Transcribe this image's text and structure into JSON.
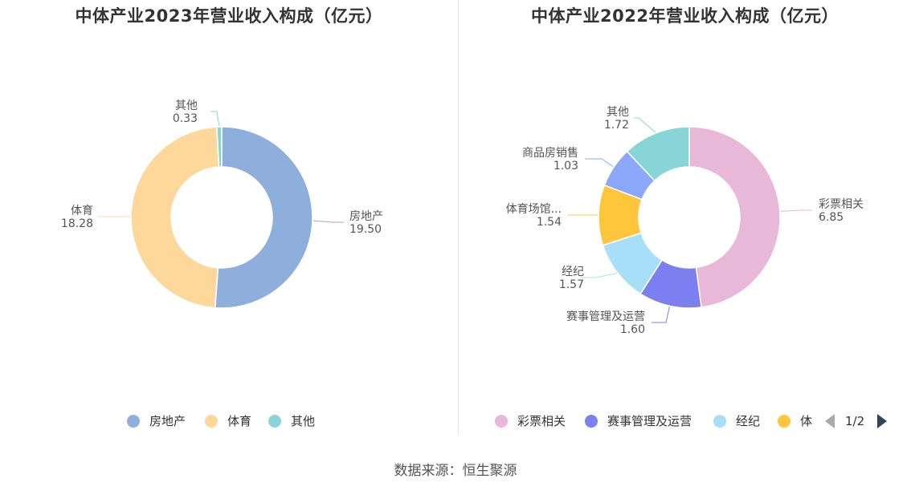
{
  "chart_data": [
    {
      "type": "pie",
      "title": "中体产业2023年营业收入构成（亿元）",
      "categories": [
        "房地产",
        "体育",
        "其他"
      ],
      "values": [
        19.5,
        18.28,
        0.33
      ],
      "value_labels": [
        "19.50",
        "18.28",
        "0.33"
      ],
      "colors": [
        "#8eaedb",
        "#fdd89a",
        "#88d5d8"
      ],
      "legend": [
        "房地产",
        "体育",
        "其他"
      ]
    },
    {
      "type": "pie",
      "title": "中体产业2022年营业收入构成（亿元）",
      "categories": [
        "彩票相关",
        "赛事管理及运营",
        "经纪",
        "体育场馆...",
        "商品房销售",
        "其他"
      ],
      "values": [
        6.85,
        1.6,
        1.57,
        1.54,
        1.03,
        1.72
      ],
      "value_labels": [
        "6.85",
        "1.60",
        "1.57",
        "1.54",
        "1.03",
        "1.72"
      ],
      "colors": [
        "#e8b8d8",
        "#7b7ff0",
        "#a8dff8",
        "#ffc53d",
        "#8ca8fb",
        "#88d5d8"
      ],
      "legend": [
        "彩票相关",
        "赛事管理及运营",
        "经纪",
        "体"
      ],
      "legend_pager": "1/2"
    }
  ],
  "source": "数据来源：恒生聚源"
}
